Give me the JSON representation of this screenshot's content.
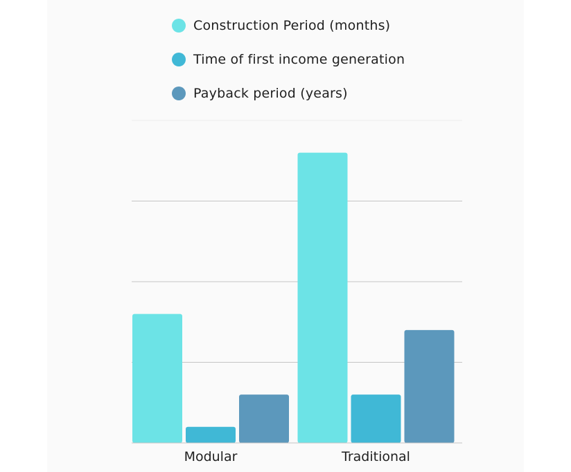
{
  "chart_data": {
    "type": "bar",
    "categories": [
      "Modular",
      "Traditional"
    ],
    "series": [
      {
        "name": "Construction Period (months)",
        "values": [
          8,
          18
        ],
        "color": "#6ce3e6"
      },
      {
        "name": "Time of first income generation",
        "values": [
          1,
          3
        ],
        "color": "#40b8d6"
      },
      {
        "name": "Payback period (years)",
        "values": [
          3,
          7
        ],
        "color": "#5c98bc"
      }
    ],
    "title": "",
    "xlabel": "",
    "ylabel": "",
    "ylim": [
      0,
      20
    ],
    "grid": true,
    "legend_position": "top"
  }
}
